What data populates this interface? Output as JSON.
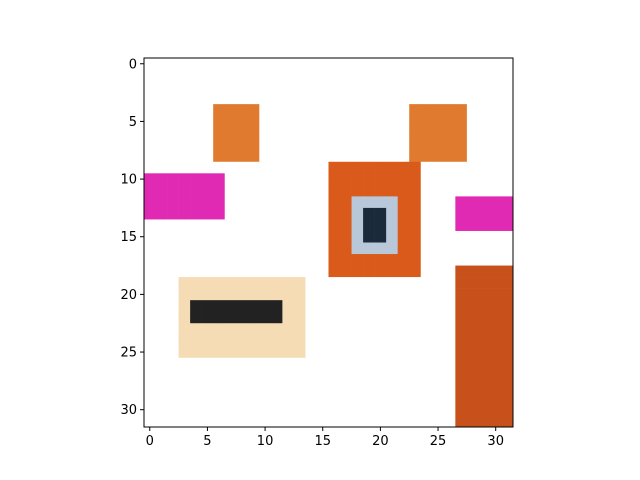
{
  "chart_data": {
    "type": "heatmap",
    "title": "",
    "xlabel": "",
    "ylabel": "",
    "xlim": [
      -0.5,
      31.5
    ],
    "ylim": [
      31.5,
      -0.5
    ],
    "x_ticks": [
      0,
      5,
      10,
      15,
      20,
      25,
      30
    ],
    "y_ticks": [
      0,
      5,
      10,
      15,
      20,
      25,
      30
    ],
    "x_tick_labels": [
      "0",
      "5",
      "10",
      "15",
      "20",
      "25",
      "30"
    ],
    "y_tick_labels": [
      "0",
      "5",
      "10",
      "15",
      "20",
      "25",
      "30"
    ],
    "grid": false,
    "description": "32x32 pixel-art image rendered with imshow (cartoon cow face)",
    "image_size": [
      32,
      32
    ],
    "regions": [
      {
        "name": "left ear",
        "color": "#e07a2e",
        "rows": [
          4,
          8
        ],
        "cols": [
          6,
          9
        ]
      },
      {
        "name": "right ear",
        "color": "#e07a2e",
        "rows": [
          4,
          8
        ],
        "cols": [
          23,
          27
        ]
      },
      {
        "name": "left eye pink",
        "color": "#e02ab4",
        "rows": [
          10,
          13
        ],
        "cols": [
          0,
          6
        ]
      },
      {
        "name": "right eye pink",
        "color": "#e02ab4",
        "rows": [
          12,
          14
        ],
        "cols": [
          27,
          31
        ]
      },
      {
        "name": "orange ring",
        "color": "#d95a1a",
        "rows": [
          9,
          18
        ],
        "cols": [
          16,
          23
        ]
      },
      {
        "name": "snout",
        "color": "#f5dcb4",
        "rows": [
          19,
          25
        ],
        "cols": [
          3,
          13
        ]
      },
      {
        "name": "nostrils",
        "color": "#222222",
        "rows": [
          21,
          22
        ],
        "cols": [
          4,
          11
        ]
      },
      {
        "name": "right orange patch",
        "color": "#c8501a",
        "rows": [
          18,
          31
        ],
        "cols": [
          27,
          31
        ]
      }
    ]
  }
}
